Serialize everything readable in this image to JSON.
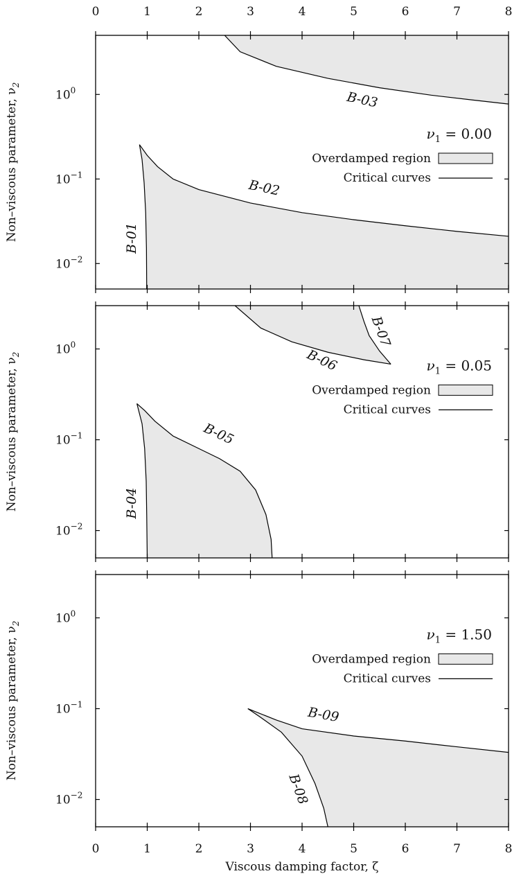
{
  "chart_data": {
    "type": "area",
    "x_axis": {
      "label": "Viscous damping factor, ζ",
      "range": [
        0,
        8
      ],
      "ticks": [
        "0",
        "1",
        "2",
        "3",
        "4",
        "5",
        "6",
        "7",
        "8"
      ]
    },
    "y_axis_label": "Non–viscous parameter, ν",
    "y_axis_label_subscript": "2",
    "y_scale": "log",
    "y_ticks": [
      {
        "value": 0.01,
        "base": "10",
        "exp": "−2"
      },
      {
        "value": 0.1,
        "base": "10",
        "exp": "−1"
      },
      {
        "value": 1,
        "base": "10",
        "exp": "0"
      }
    ],
    "legend": {
      "region_label": "Overdamped region",
      "curve_label": "Critical curves",
      "placement": "right"
    },
    "panels": [
      {
        "title_symbol": "ν",
        "title_subscript": "1",
        "title_value": "= 0.00",
        "ylim": [
          0.005,
          5.0
        ],
        "regions": [
          {
            "points": [
              [
                2.5,
                5.0
              ],
              [
                2.8,
                3.2
              ],
              [
                3.5,
                2.15
              ],
              [
                4.5,
                1.55
              ],
              [
                5.5,
                1.2
              ],
              [
                6.5,
                0.98
              ],
              [
                7.3,
                0.86
              ],
              [
                8.0,
                0.77
              ],
              [
                8.0,
                5.0
              ]
            ]
          },
          {
            "points": [
              [
                0.85,
                0.255
              ],
              [
                0.9,
                0.17
              ],
              [
                0.94,
                0.09
              ],
              [
                0.97,
                0.04
              ],
              [
                0.985,
                0.015
              ],
              [
                0.99,
                0.005
              ],
              [
                8.0,
                0.005
              ],
              [
                8.0,
                0.021
              ],
              [
                7,
                0.024
              ],
              [
                6,
                0.028
              ],
              [
                5,
                0.033
              ],
              [
                4,
                0.04
              ],
              [
                3,
                0.052
              ],
              [
                2,
                0.075
              ],
              [
                1.5,
                0.1
              ],
              [
                1.2,
                0.14
              ],
              [
                1.0,
                0.19
              ]
            ]
          }
        ],
        "curves": [
          {
            "label": "B-01",
            "points": [
              [
                0.85,
                0.255
              ],
              [
                0.9,
                0.17
              ],
              [
                0.94,
                0.09
              ],
              [
                0.97,
                0.04
              ],
              [
                0.985,
                0.015
              ],
              [
                0.99,
                0.005
              ]
            ]
          },
          {
            "label": "B-02",
            "points": [
              [
                0.85,
                0.255
              ],
              [
                1.0,
                0.19
              ],
              [
                1.2,
                0.14
              ],
              [
                1.5,
                0.1
              ],
              [
                2,
                0.075
              ],
              [
                3,
                0.052
              ],
              [
                4,
                0.04
              ],
              [
                5,
                0.033
              ],
              [
                6,
                0.028
              ],
              [
                7,
                0.024
              ],
              [
                8.0,
                0.021
              ]
            ]
          },
          {
            "label": "B-03",
            "points": [
              [
                2.5,
                5.0
              ],
              [
                2.8,
                3.2
              ],
              [
                3.5,
                2.15
              ],
              [
                4.5,
                1.55
              ],
              [
                5.5,
                1.2
              ],
              [
                6.5,
                0.98
              ],
              [
                7.3,
                0.86
              ],
              [
                8.0,
                0.77
              ]
            ]
          }
        ],
        "curve_labels": [
          {
            "label": "B-01",
            "x": 0.78,
            "y": 0.02,
            "rotate": -90
          },
          {
            "label": "B-02",
            "x": 3.25,
            "y": 0.07,
            "rotate": 12
          },
          {
            "label": "B-03",
            "x": 5.15,
            "y": 0.77,
            "rotate": 12
          }
        ]
      },
      {
        "title_symbol": "ν",
        "title_subscript": "1",
        "title_value": "= 0.05",
        "ylim": [
          0.005,
          3.0
        ],
        "regions": [
          {
            "points": [
              [
                2.7,
                3.0
              ],
              [
                5.1,
                3.0
              ],
              [
                5.2,
                2.0
              ],
              [
                5.3,
                1.4
              ],
              [
                5.5,
                0.95
              ],
              [
                5.72,
                0.68
              ],
              [
                5.2,
                0.76
              ],
              [
                4.5,
                0.92
              ],
              [
                3.8,
                1.2
              ],
              [
                3.2,
                1.7
              ],
              [
                2.7,
                3.0
              ]
            ]
          },
          {
            "points": [
              [
                0.8,
                0.25
              ],
              [
                0.9,
                0.15
              ],
              [
                0.95,
                0.08
              ],
              [
                0.98,
                0.035
              ],
              [
                0.99,
                0.015
              ],
              [
                1.0,
                0.005
              ],
              [
                3.42,
                0.005
              ],
              [
                3.4,
                0.008
              ],
              [
                3.3,
                0.015
              ],
              [
                3.1,
                0.028
              ],
              [
                2.8,
                0.045
              ],
              [
                2.4,
                0.062
              ],
              [
                2.0,
                0.08
              ],
              [
                1.5,
                0.11
              ],
              [
                1.15,
                0.16
              ],
              [
                0.95,
                0.21
              ]
            ]
          }
        ],
        "curves": [
          {
            "label": "B-04",
            "points": [
              [
                0.8,
                0.25
              ],
              [
                0.9,
                0.15
              ],
              [
                0.95,
                0.08
              ],
              [
                0.98,
                0.035
              ],
              [
                0.99,
                0.015
              ],
              [
                1.0,
                0.005
              ]
            ]
          },
          {
            "label": "B-05",
            "points": [
              [
                0.8,
                0.25
              ],
              [
                0.95,
                0.21
              ],
              [
                1.15,
                0.16
              ],
              [
                1.5,
                0.11
              ],
              [
                2.0,
                0.08
              ],
              [
                2.4,
                0.062
              ],
              [
                2.8,
                0.045
              ],
              [
                3.1,
                0.028
              ],
              [
                3.3,
                0.015
              ],
              [
                3.4,
                0.008
              ],
              [
                3.42,
                0.005
              ]
            ]
          },
          {
            "label": "B-06",
            "points": [
              [
                2.7,
                3.0
              ],
              [
                3.2,
                1.7
              ],
              [
                3.8,
                1.2
              ],
              [
                4.5,
                0.92
              ],
              [
                5.2,
                0.76
              ],
              [
                5.72,
                0.68
              ]
            ]
          },
          {
            "label": "B-07",
            "points": [
              [
                5.1,
                3.0
              ],
              [
                5.2,
                2.0
              ],
              [
                5.3,
                1.4
              ],
              [
                5.5,
                0.95
              ],
              [
                5.72,
                0.68
              ]
            ]
          }
        ],
        "curve_labels": [
          {
            "label": "B-04",
            "x": 0.78,
            "y": 0.02,
            "rotate": -90
          },
          {
            "label": "B-05",
            "x": 2.35,
            "y": 0.105,
            "rotate": 25
          },
          {
            "label": "B-06",
            "x": 4.35,
            "y": 0.68,
            "rotate": 25
          },
          {
            "label": "B-07",
            "x": 5.45,
            "y": 1.5,
            "rotate": 70
          }
        ]
      },
      {
        "title_symbol": "ν",
        "title_subscript": "1",
        "title_value": "= 1.50",
        "ylim": [
          0.005,
          3.0
        ],
        "regions": [
          {
            "points": [
              [
                2.95,
                0.1
              ],
              [
                3.5,
                0.075
              ],
              [
                4,
                0.06
              ],
              [
                5,
                0.05
              ],
              [
                6,
                0.044
              ],
              [
                7,
                0.038
              ],
              [
                8.0,
                0.033
              ],
              [
                8.0,
                0.005
              ],
              [
                4.5,
                0.005
              ],
              [
                4.42,
                0.008
              ],
              [
                4.25,
                0.015
              ],
              [
                4.0,
                0.03
              ],
              [
                3.6,
                0.055
              ],
              [
                3.2,
                0.08
              ],
              [
                2.95,
                0.1
              ]
            ]
          }
        ],
        "curves": [
          {
            "label": "B-08",
            "points": [
              [
                2.95,
                0.1
              ],
              [
                3.2,
                0.08
              ],
              [
                3.6,
                0.055
              ],
              [
                4.0,
                0.03
              ],
              [
                4.25,
                0.015
              ],
              [
                4.42,
                0.008
              ],
              [
                4.5,
                0.005
              ]
            ]
          },
          {
            "label": "B-09",
            "points": [
              [
                2.95,
                0.1
              ],
              [
                3.5,
                0.075
              ],
              [
                4,
                0.06
              ],
              [
                5,
                0.05
              ],
              [
                6,
                0.044
              ],
              [
                7,
                0.038
              ],
              [
                8.0,
                0.033
              ]
            ]
          }
        ],
        "curve_labels": [
          {
            "label": "B-08",
            "x": 3.85,
            "y": 0.0125,
            "rotate": 70
          },
          {
            "label": "B-09",
            "x": 4.4,
            "y": 0.077,
            "rotate": 10
          }
        ]
      }
    ]
  }
}
